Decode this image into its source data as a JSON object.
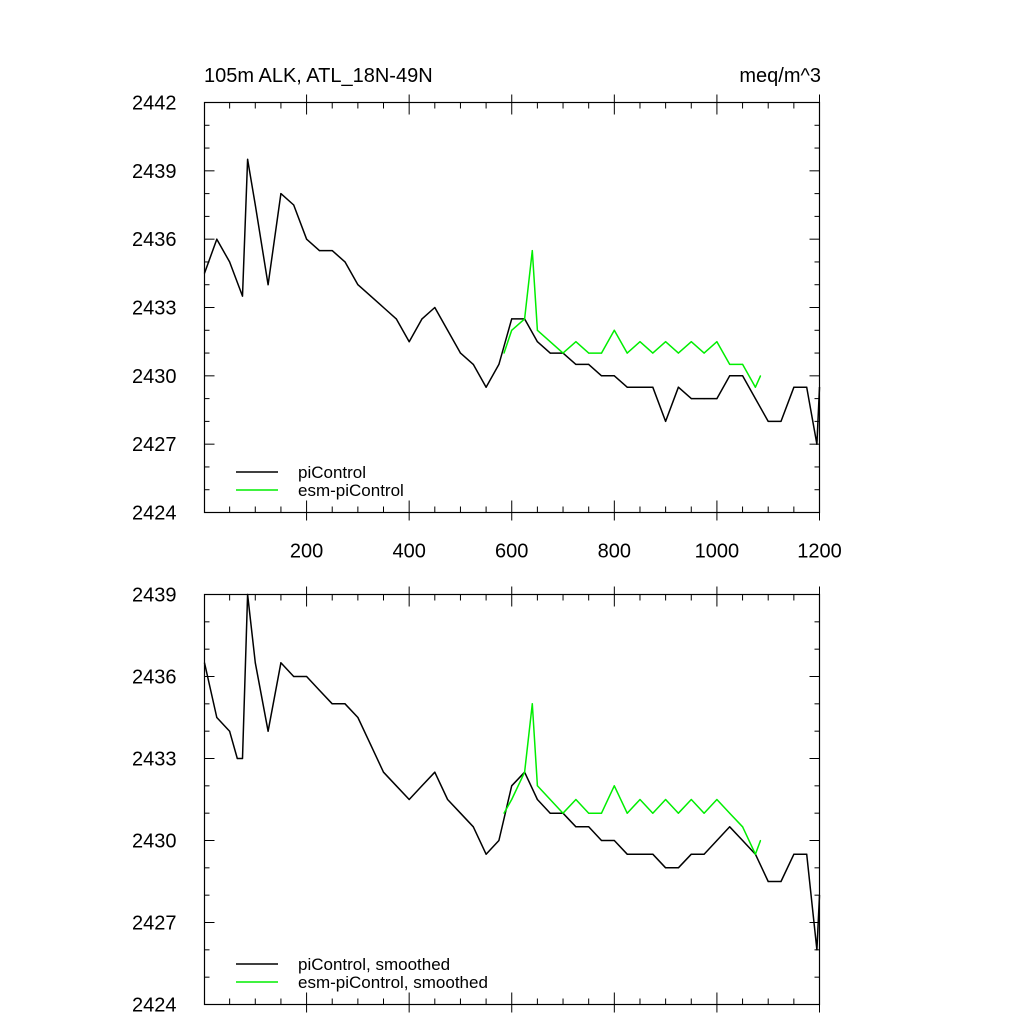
{
  "chart_data": [
    {
      "type": "line",
      "title": "105m ALK, ATL_18N-49N",
      "units_label": "meq/m^3",
      "xlim": [
        1,
        1200
      ],
      "ylim": [
        2424,
        2442
      ],
      "x_ticks": [
        200,
        400,
        600,
        800,
        1000,
        1200
      ],
      "y_ticks": [
        2424,
        2427,
        2430,
        2433,
        2436,
        2439,
        2442
      ],
      "grid": false,
      "legend_position": "bottom-left",
      "colors": {
        "piControl": "#000000",
        "esm-piControl": "#00ee00"
      },
      "series": [
        {
          "name": "piControl",
          "x": [
            1,
            25,
            50,
            75,
            85,
            100,
            125,
            150,
            175,
            200,
            225,
            250,
            275,
            300,
            325,
            350,
            375,
            400,
            425,
            450,
            475,
            500,
            525,
            550,
            575,
            600,
            625,
            650,
            675,
            700,
            725,
            750,
            775,
            800,
            825,
            850,
            875,
            900,
            925,
            950,
            975,
            1000,
            1025,
            1050,
            1075,
            1100,
            1125,
            1150,
            1175,
            1195,
            1200
          ],
          "values": [
            2434.5,
            2436,
            2435,
            2433.5,
            2439.5,
            2437.5,
            2434,
            2438,
            2437.5,
            2436,
            2435.5,
            2435.5,
            2435,
            2434,
            2433.5,
            2433,
            2432.5,
            2431.5,
            2432.5,
            2433,
            2432,
            2431,
            2430.5,
            2429.5,
            2430.5,
            2432.5,
            2432.5,
            2431.5,
            2431,
            2431,
            2430.5,
            2430.5,
            2430,
            2430,
            2429.5,
            2429.5,
            2429.5,
            2428,
            2429.5,
            2429,
            2429,
            2429,
            2430,
            2430,
            2429,
            2428,
            2428,
            2429.5,
            2429.5,
            2427,
            2429.5
          ]
        },
        {
          "name": "esm-piControl",
          "x": [
            585,
            600,
            625,
            640,
            650,
            675,
            700,
            725,
            750,
            775,
            800,
            825,
            850,
            875,
            900,
            925,
            950,
            975,
            1000,
            1025,
            1050,
            1075,
            1085
          ],
          "values": [
            2431,
            2432,
            2432.5,
            2435.5,
            2432,
            2431.5,
            2431,
            2431.5,
            2431,
            2431,
            2432,
            2431,
            2431.5,
            2431,
            2431.5,
            2431,
            2431.5,
            2431,
            2431.5,
            2430.5,
            2430.5,
            2429.5,
            2430
          ]
        }
      ]
    },
    {
      "type": "line",
      "xlim": [
        1,
        1200
      ],
      "ylim": [
        2424,
        2439
      ],
      "y_ticks": [
        2424,
        2427,
        2430,
        2433,
        2436,
        2439
      ],
      "grid": false,
      "legend_position": "bottom-left",
      "colors": {
        "piControl, smoothed": "#000000",
        "esm-piControl, smoothed": "#00ee00"
      },
      "series": [
        {
          "name": "piControl, smoothed",
          "x": [
            1,
            25,
            50,
            65,
            75,
            85,
            100,
            125,
            150,
            175,
            200,
            225,
            250,
            275,
            300,
            325,
            350,
            375,
            400,
            425,
            450,
            475,
            500,
            525,
            550,
            575,
            600,
            625,
            650,
            675,
            700,
            725,
            750,
            775,
            800,
            825,
            850,
            875,
            900,
            925,
            950,
            975,
            1000,
            1025,
            1050,
            1075,
            1100,
            1125,
            1150,
            1175,
            1195,
            1200
          ],
          "values": [
            2436.5,
            2434.5,
            2434,
            2433,
            2433,
            2439,
            2436.5,
            2434,
            2436.5,
            2436,
            2436,
            2435.5,
            2435,
            2435,
            2434.5,
            2433.5,
            2432.5,
            2432,
            2431.5,
            2432,
            2432.5,
            2431.5,
            2431,
            2430.5,
            2429.5,
            2430,
            2432,
            2432.5,
            2431.5,
            2431,
            2431,
            2430.5,
            2430.5,
            2430,
            2430,
            2429.5,
            2429.5,
            2429.5,
            2429,
            2429,
            2429.5,
            2429.5,
            2430,
            2430.5,
            2430,
            2429.5,
            2428.5,
            2428.5,
            2429.5,
            2429.5,
            2426,
            2428
          ]
        },
        {
          "name": "esm-piControl, smoothed",
          "x": [
            585,
            600,
            625,
            640,
            650,
            675,
            700,
            725,
            750,
            775,
            800,
            825,
            850,
            875,
            900,
            925,
            950,
            975,
            1000,
            1025,
            1050,
            1075,
            1085
          ],
          "values": [
            2431,
            2431.5,
            2432.5,
            2435,
            2432,
            2431.5,
            2431,
            2431.5,
            2431,
            2431,
            2432,
            2431,
            2431.5,
            2431,
            2431.5,
            2431,
            2431.5,
            2431,
            2431.5,
            2431,
            2430.5,
            2429.5,
            2430
          ]
        }
      ]
    }
  ]
}
